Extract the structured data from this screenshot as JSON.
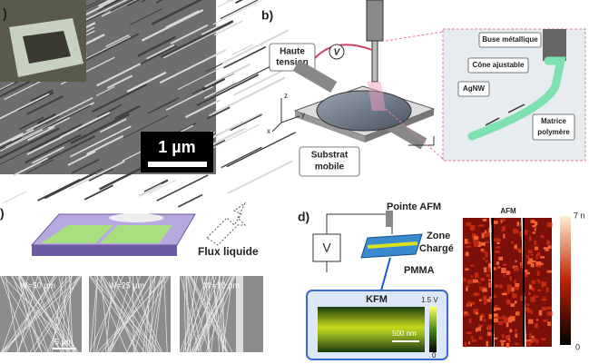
{
  "panel_a": {
    "label": ")",
    "scale_bar": "1 µm"
  },
  "panel_b": {
    "label": "b)",
    "high_voltage": [
      "Haute",
      "tension"
    ],
    "voltage": "V",
    "axes": [
      "z",
      "y",
      "x"
    ],
    "nozzle": "Buse métallique",
    "cone": "Cône ajustable",
    "wire": "AgNW",
    "matrix": [
      "Matrice",
      "polymère"
    ],
    "substrate": [
      "Substrat",
      "mobile"
    ]
  },
  "panel_c": {
    "label": ")",
    "flow": "Flux liquide",
    "widths": [
      "W=50 µm",
      "W=25 µm",
      "W=10 µm"
    ],
    "scale_bar": "5 µm"
  },
  "panel_d": {
    "label": "d)",
    "tip": "Pointe AFM",
    "voltage": "V",
    "zone": [
      "Zone",
      "Chargé"
    ],
    "pmma": "PMMA",
    "kfm": {
      "title": "KFM",
      "max": "1.5 V",
      "min": "0",
      "scale_bar": "500 nm"
    },
    "afm": {
      "title": "AFM",
      "max": "7 n",
      "min": "0"
    }
  }
}
